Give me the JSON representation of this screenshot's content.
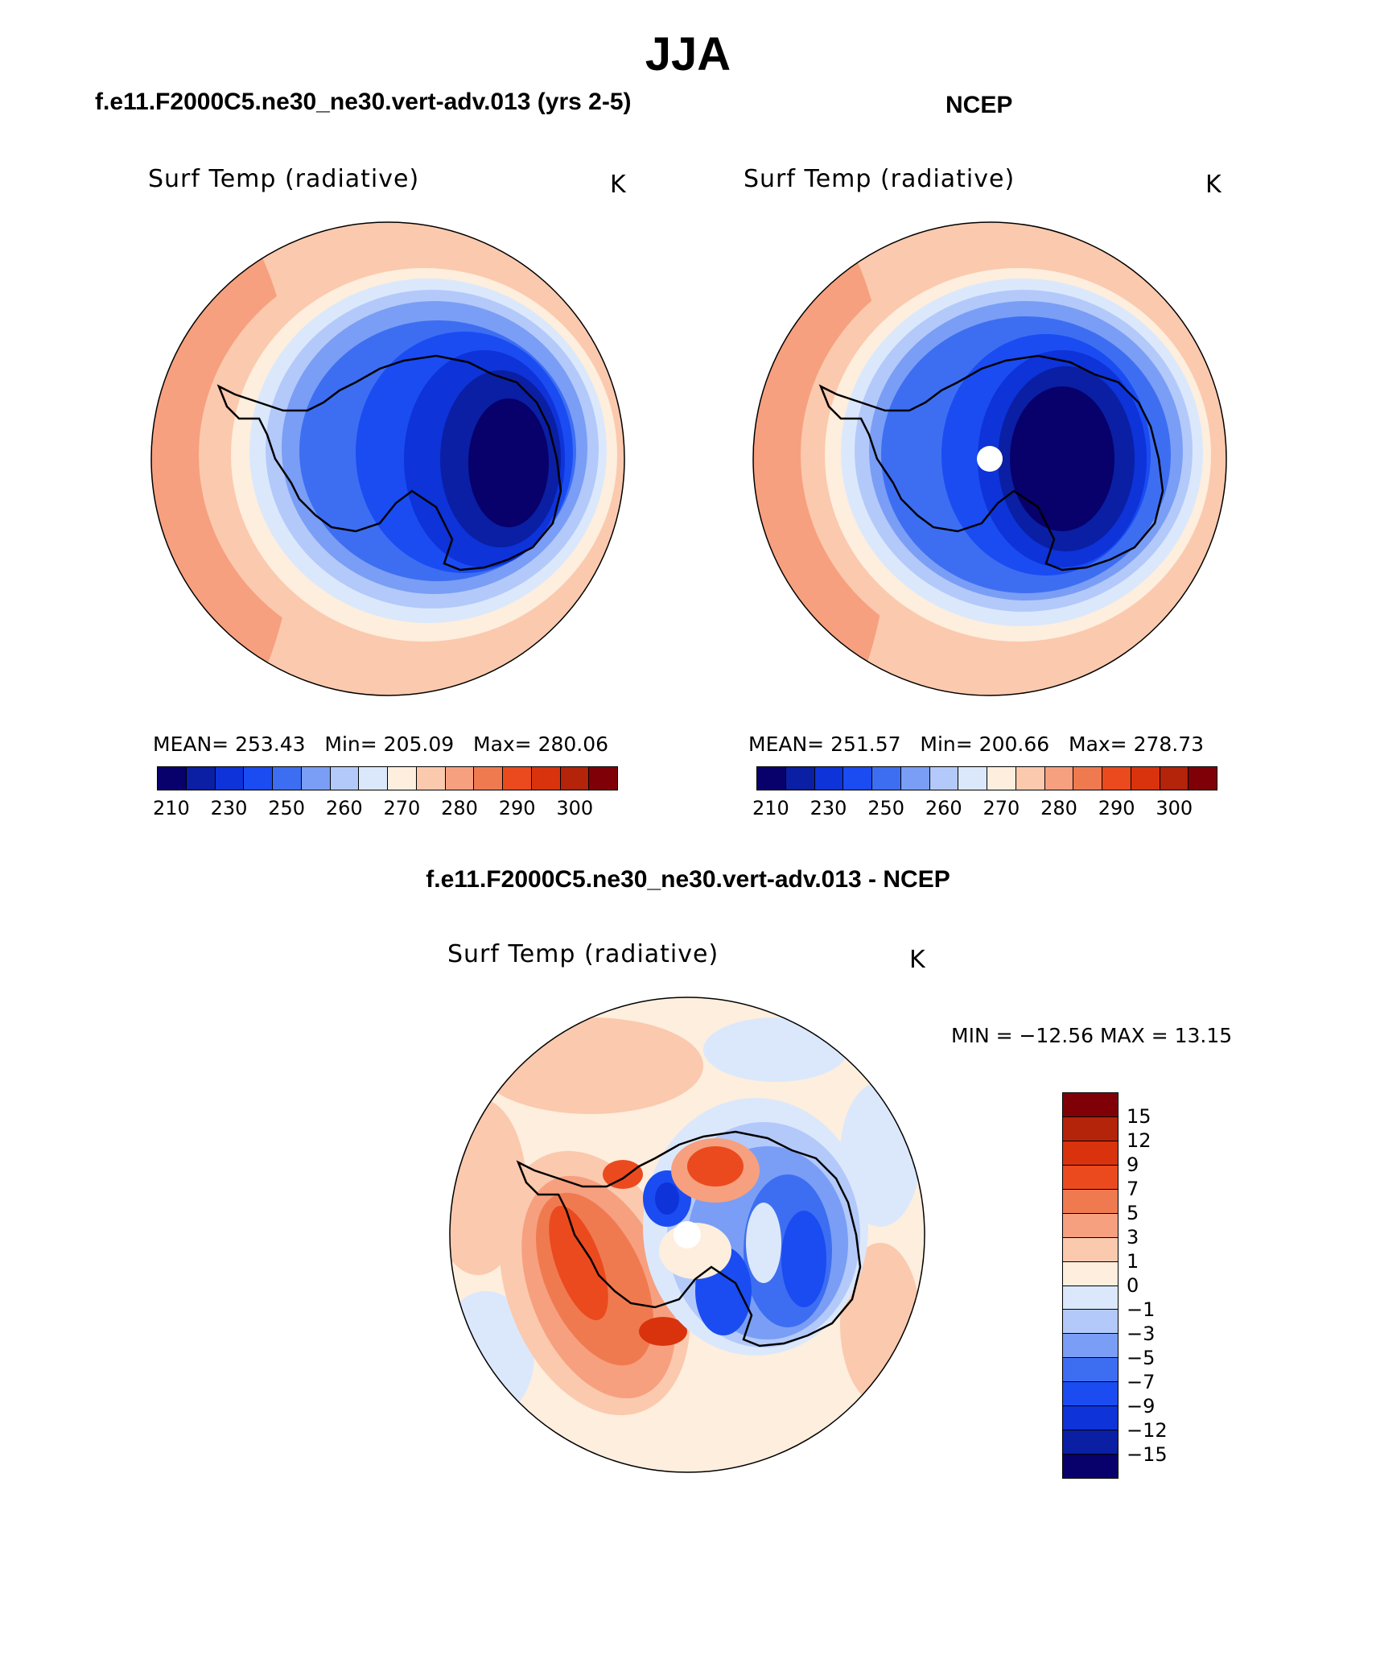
{
  "title": "JJA",
  "panels": [
    {
      "id": "model",
      "case_title": "f.e11.F2000C5.ne30_ne30.vert-adv.013 (yrs 2-5)",
      "variable_label": "Surf Temp (radiative)",
      "units": "K",
      "stats": {
        "mean_label": "MEAN=",
        "mean": "253.43",
        "min_label": "Min=",
        "min": "205.09",
        "max_label": "Max=",
        "max": "280.06"
      },
      "pole_masked": false
    },
    {
      "id": "obs",
      "case_title": "NCEP",
      "variable_label": "Surf Temp (radiative)",
      "units": "K",
      "stats": {
        "mean_label": "MEAN=",
        "mean": "251.57",
        "min_label": "Min=",
        "min": "200.66",
        "max_label": "Max=",
        "max": "278.73"
      },
      "pole_masked": true
    }
  ],
  "abs_colorbar": {
    "colors": [
      "#08006b",
      "#0a1fa3",
      "#0d33d9",
      "#1a4cf2",
      "#3d6ef2",
      "#7a9ef5",
      "#b3c9fa",
      "#dbe8fc",
      "#fdeedd",
      "#fbc9ae",
      "#f6a07f",
      "#f07a50",
      "#eb4a1f",
      "#d9330d",
      "#b3240a",
      "#800008"
    ],
    "ticks": [
      "210",
      "230",
      "250",
      "260",
      "270",
      "280",
      "290",
      "300"
    ]
  },
  "diff_panel": {
    "title": "f.e11.F2000C5.ne30_ne30.vert-adv.013 - NCEP",
    "variable_label": "Surf Temp (radiative)",
    "units": "K",
    "minmax_text": "MIN = −12.56 MAX =   13.15",
    "pole_masked": true
  },
  "diff_colorbar": {
    "colors": [
      "#800008",
      "#b3240a",
      "#d9330d",
      "#eb4a1f",
      "#f07a50",
      "#f6a07f",
      "#fbc9ae",
      "#fdeedd",
      "#dbe8fc",
      "#b3c9fa",
      "#7a9ef5",
      "#3d6ef2",
      "#1a4cf2",
      "#0d33d9",
      "#0a1fa3",
      "#08006b"
    ],
    "ticks": [
      "15",
      "12",
      "9",
      "7",
      "5",
      "3",
      "1",
      "0",
      "−1",
      "−3",
      "−5",
      "−7",
      "−9",
      "−12",
      "−15"
    ]
  }
}
